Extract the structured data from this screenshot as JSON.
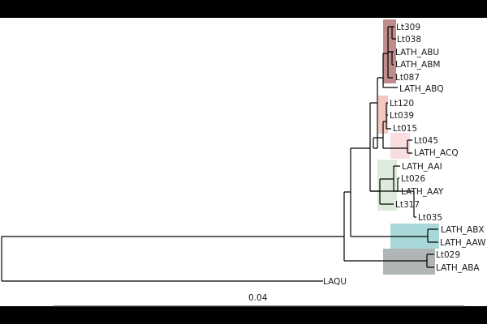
{
  "tree": {
    "taxa": [
      "Lt309",
      "Lt038",
      "LATH_ABU",
      "LATH_ABM",
      "Lt087",
      "LATH_ABQ",
      "Lt120",
      "Lt039",
      "Lt015",
      "Lt045",
      "LATH_ACQ",
      "LATH_AAI",
      "Lt026",
      "LATH_AAY",
      "Lt317",
      "Lt035",
      "LATH_ABX",
      "LATH_AAW",
      "Lt029",
      "LATH_ABA",
      "LAQU"
    ],
    "scale_label": "0.04",
    "clade_colors": {
      "group1": "#bf8c8c",
      "group2": "#f5c7c0",
      "group3": "#f9dde0",
      "group4": "#dcebdc",
      "group5": "#a9d8d8",
      "group6": "#b0b6b6"
    }
  }
}
